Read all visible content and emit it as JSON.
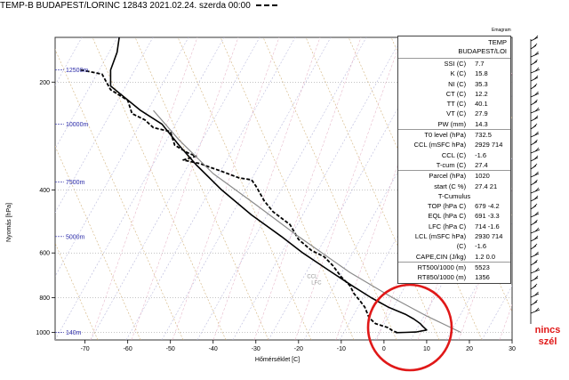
{
  "header": {
    "title": "TEMP-B BUDAPEST/LORINC 12843 2021.02.24. szerda 00:00"
  },
  "emagram_label": "Emagram",
  "chart_data": {
    "type": "line",
    "xlabel": "Hőmérséklet [C]",
    "ylabel": "Nyomás [hPa]",
    "xlim": [
      -77,
      30
    ],
    "ylim": [
      1050,
      150
    ],
    "yscale": "log",
    "xticks": [
      -70,
      -60,
      -50,
      -40,
      -30,
      -20,
      -10,
      0,
      10,
      20,
      30
    ],
    "yticks": [
      200,
      400,
      600,
      800,
      1000
    ],
    "height_labels": [
      {
        "text": "12500m",
        "p": 185
      },
      {
        "text": "10000m",
        "p": 262
      },
      {
        "text": "7500m",
        "p": 380
      },
      {
        "text": "5000m",
        "p": 540
      },
      {
        "text": "140m",
        "p": 1000
      }
    ],
    "series": [
      {
        "values": [
          [
            -62,
            150
          ],
          [
            -62.5,
            165
          ],
          [
            -64,
            185
          ],
          [
            -64,
            205
          ],
          [
            -57,
            240
          ],
          [
            -52,
            262
          ],
          [
            -48,
            300
          ],
          [
            -44,
            340
          ],
          [
            -38,
            400
          ],
          [
            -31,
            470
          ],
          [
            -24,
            540
          ],
          [
            -19,
            600
          ],
          [
            -13,
            670
          ],
          [
            -7.5,
            740
          ],
          [
            -3,
            800
          ],
          [
            1,
            850
          ],
          [
            5,
            890
          ],
          [
            7,
            918
          ],
          [
            8.5,
            945
          ],
          [
            9,
            960
          ],
          [
            10,
            985
          ],
          [
            7.5,
            998
          ],
          [
            5,
            1000
          ],
          [
            2.8,
            1002
          ]
        ]
      },
      {
        "values": [
          [
            -71,
            185
          ],
          [
            -66,
            190
          ],
          [
            -64,
            210
          ],
          [
            -60,
            225
          ],
          [
            -59,
            245
          ],
          [
            -56,
            255
          ],
          [
            -54,
            268
          ],
          [
            -50,
            275
          ],
          [
            -49,
            300
          ],
          [
            -46,
            315
          ],
          [
            -44,
            322
          ],
          [
            -47,
            330
          ],
          [
            -43,
            338
          ],
          [
            -41,
            345
          ],
          [
            -38,
            355
          ],
          [
            -34,
            370
          ],
          [
            -31,
            375
          ],
          [
            -30,
            390
          ],
          [
            -28,
            430
          ],
          [
            -26,
            460
          ],
          [
            -22,
            500
          ],
          [
            -20,
            550
          ],
          [
            -17,
            590
          ],
          [
            -14,
            615
          ],
          [
            -12,
            650
          ],
          [
            -10,
            700
          ],
          [
            -8,
            740
          ],
          [
            -7,
            780
          ],
          [
            -5.5,
            820
          ],
          [
            -4.5,
            850
          ],
          [
            -4,
            880
          ],
          [
            -3.5,
            910
          ],
          [
            -2,
            945
          ],
          [
            1,
            970
          ],
          [
            2,
            990
          ],
          [
            3,
            1000
          ]
        ]
      },
      {
        "values": [
          [
            -54,
            240
          ],
          [
            -48,
            290
          ],
          [
            -40,
            360
          ],
          [
            -30,
            440
          ],
          [
            -20,
            540
          ],
          [
            -8,
            680
          ],
          [
            2,
            800
          ],
          [
            10,
            900
          ],
          [
            18,
            1000
          ]
        ]
      }
    ],
    "parcel_labels": [
      "CCL",
      "LFC"
    ]
  },
  "stats": {
    "head1": "TEMP",
    "head2": "BUDAPEST/LOI",
    "groups": [
      [
        [
          "SSI (C)",
          "7.7"
        ],
        [
          "K (C)",
          "15.8"
        ],
        [
          "NI (C)",
          "35.3"
        ],
        [
          "CT (C)",
          "12.2"
        ],
        [
          "TT (C)",
          "40.1"
        ],
        [
          "VT (C)",
          "27.9"
        ],
        [
          "PW (mm)",
          "14.3"
        ]
      ],
      [
        [
          "T0 level (hPa)",
          "732.5"
        ],
        [
          "CCL (mSFC hPa)",
          "2929 714"
        ],
        [
          "CCL (C)",
          "-1.6"
        ],
        [
          "T-cum (C)",
          "27.4"
        ]
      ],
      [
        [
          "Parcel (hPa)",
          "1020"
        ],
        [
          "start (C %)",
          "27.4 21"
        ]
      ],
      [
        [
          "TOP (hPa C)",
          "679 -4.2"
        ],
        [
          "EQL (hPa C)",
          "691 -3.3"
        ],
        [
          "LFC (hPa C)",
          "714 -1.6"
        ],
        [
          "LCL (mSFC hPa)",
          "2930 714"
        ],
        [
          "(C)",
          "-1.6"
        ],
        [
          "CAPE,CIN (J/kg)",
          "1.2 0.0"
        ]
      ],
      [
        [
          "RT500/1000 (m)",
          "5523"
        ],
        [
          "RT850/1000 (m)",
          "1356"
        ]
      ]
    ],
    "tcumulus": "T-Cumulus"
  },
  "annotation": {
    "line1": "nincs",
    "line2": "szél"
  }
}
